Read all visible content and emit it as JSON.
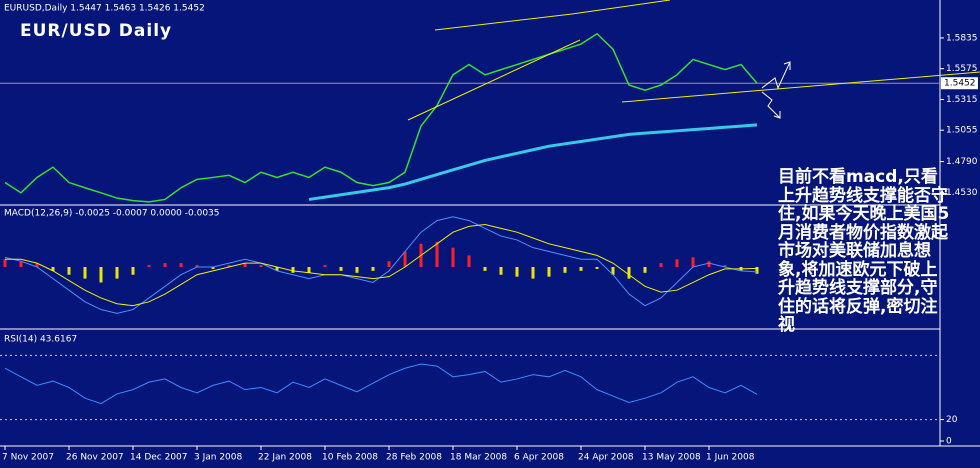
{
  "chart_data": [
    {
      "type": "line",
      "title": "EUR/USD Daily",
      "header": "EURUSD,Daily  1.5447 1.5463 1.5426 1.5452",
      "categories": [
        "7 Nov 2007",
        null,
        null,
        null,
        "26 Nov 2007",
        null,
        null,
        null,
        "14 Dec 2007",
        null,
        null,
        null,
        "3 Jan 2008",
        null,
        null,
        null,
        "22 Jan 2008",
        null,
        null,
        null,
        "10 Feb 2008",
        null,
        null,
        null,
        "28 Feb 2008",
        null,
        null,
        null,
        "18 Mar 2008",
        null,
        null,
        null,
        "6 Apr 2008",
        null,
        null,
        null,
        "24 Apr 2008",
        null,
        null,
        null,
        "13 May 2008",
        null,
        null,
        null,
        "1 Jun 2008",
        null,
        null,
        null
      ],
      "series": [
        {
          "color": "#33e033",
          "values": [
            1.4613,
            1.4526,
            1.4656,
            1.4743,
            1.4613,
            1.4569,
            1.4526,
            1.4482,
            1.446,
            1.445,
            1.447,
            1.4569,
            1.464,
            1.4656,
            1.4674,
            1.4613,
            1.47,
            1.4656,
            1.47,
            1.4656,
            1.4743,
            1.47,
            1.4613,
            1.4587,
            1.4613,
            1.47,
            1.509,
            1.5263,
            1.5523,
            1.561,
            1.5523,
            1.5567,
            1.561,
            1.5653,
            1.5697,
            1.574,
            1.5783,
            1.587,
            1.574,
            1.5437,
            1.5393,
            1.5437,
            1.5523,
            1.5653,
            1.561,
            1.5567,
            1.561,
            1.5452
          ]
        },
        {
          "color": "#38c8e8",
          "values": [
            null,
            null,
            null,
            null,
            null,
            null,
            null,
            null,
            null,
            null,
            null,
            null,
            null,
            null,
            null,
            null,
            null,
            null,
            null,
            1.447,
            1.449,
            1.451,
            1.453,
            1.455,
            1.457,
            1.46,
            1.464,
            1.468,
            1.472,
            1.476,
            1.48,
            1.483,
            1.486,
            1.489,
            1.492,
            1.494,
            1.496,
            1.498,
            1.5,
            1.502,
            1.503,
            1.504,
            1.505,
            1.506,
            1.507,
            1.508,
            1.509,
            1.51
          ]
        }
      ],
      "ylim": [
        1.444,
        1.613
      ],
      "yticks": [
        1.5835,
        1.5575,
        1.5315,
        1.5055,
        {
          "value": 1.479,
          "label": "1.4790"
        },
        {
          "value": 1.453,
          "label": "1.4530"
        }
      ],
      "last_price": 1.5452,
      "annotation": "目前不看macd,只看上升趋势线支撑能否守住,如果今天晚上美国5月消费者物价指数激起市场对美联储加息想象,将加速欧元下破上升趋势线支撑部分,守住的话将反弹,密切注视"
    },
    {
      "type": "bar",
      "header": "MACD(12,26,9) -0.0025 -0.0007 0.0000 -0.0035",
      "values": [
        0.004,
        0.003,
        0.002,
        -0.002,
        -0.004,
        -0.006,
        -0.008,
        -0.006,
        -0.004,
        0.001,
        0.002,
        0.002,
        0.001,
        -0.001,
        0.001,
        0.002,
        0.001,
        -0.002,
        -0.003,
        -0.003,
        0.001,
        -0.002,
        -0.003,
        -0.002,
        0.003,
        0.008,
        0.012,
        0.013,
        0.01,
        0.006,
        -0.002,
        -0.004,
        -0.005,
        -0.006,
        -0.005,
        -0.003,
        -0.002,
        -0.001,
        -0.004,
        -0.006,
        -0.003,
        0.002,
        0.004,
        0.005,
        0.003,
        0.001,
        -0.002,
        -0.0035
      ],
      "color_up": "#ff2020",
      "color_down": "#e8e800",
      "series": [
        {
          "color": "#4f8fff",
          "values": [
            0.005,
            0.003,
            0.0,
            -0.006,
            -0.012,
            -0.018,
            -0.022,
            -0.024,
            -0.022,
            -0.016,
            -0.01,
            -0.004,
            0.0,
            0.0,
            0.002,
            0.004,
            0.002,
            -0.002,
            -0.004,
            -0.006,
            -0.004,
            -0.004,
            -0.006,
            -0.008,
            -0.002,
            0.008,
            0.018,
            0.024,
            0.026,
            0.024,
            0.02,
            0.016,
            0.014,
            0.01,
            0.008,
            0.006,
            0.004,
            0.004,
            -0.004,
            -0.014,
            -0.02,
            -0.016,
            -0.008,
            0.0,
            0.002,
            0.0,
            -0.002,
            -0.0025
          ]
        },
        {
          "color": "#f0f000",
          "values": [
            0.004,
            0.004,
            0.002,
            -0.002,
            -0.007,
            -0.012,
            -0.016,
            -0.019,
            -0.02,
            -0.018,
            -0.014,
            -0.009,
            -0.004,
            -0.002,
            0.0,
            0.002,
            0.002,
            0.0,
            -0.002,
            -0.003,
            -0.004,
            -0.004,
            -0.005,
            -0.006,
            -0.005,
            0.0,
            0.006,
            0.012,
            0.018,
            0.021,
            0.022,
            0.02,
            0.018,
            0.015,
            0.012,
            0.01,
            0.008,
            0.006,
            0.002,
            -0.004,
            -0.01,
            -0.013,
            -0.012,
            -0.008,
            -0.004,
            -0.001,
            -0.001,
            -0.0007
          ]
        }
      ],
      "ylim": [
        -0.03,
        0.03
      ]
    },
    {
      "type": "line",
      "header": "RSI(14) 43.6167",
      "series": [
        {
          "color": "#3a8cff",
          "values": [
            68,
            60,
            52,
            56,
            50,
            40,
            35,
            44,
            48,
            55,
            58,
            50,
            45,
            52,
            56,
            48,
            50,
            45,
            55,
            50,
            58,
            52,
            46,
            54,
            62,
            68,
            72,
            70,
            60,
            62,
            65,
            55,
            58,
            62,
            60,
            66,
            60,
            48,
            42,
            36,
            40,
            45,
            55,
            60,
            50,
            45,
            52,
            43.6167
          ]
        }
      ],
      "ylim": [
        0,
        100
      ],
      "yticks": [
        0,
        20
      ],
      "levels": [
        20,
        80
      ]
    }
  ]
}
